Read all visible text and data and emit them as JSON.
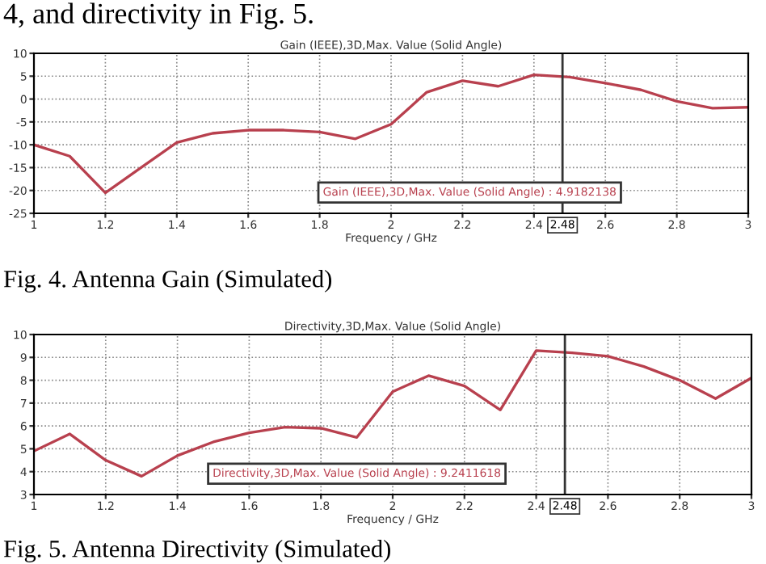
{
  "chart_data": [
    {
      "type": "line",
      "title": "Gain (IEEE),3D,Max. Value (Solid Angle)",
      "xlabel": "Frequency / GHz",
      "x": [
        1,
        1.1,
        1.2,
        1.3,
        1.4,
        1.5,
        1.6,
        1.7,
        1.8,
        1.9,
        2,
        2.1,
        2.2,
        2.3,
        2.4,
        2.5,
        2.6,
        2.7,
        2.8,
        2.9,
        3
      ],
      "series": [
        {
          "color": "#b8404e",
          "values": [
            -10,
            -12.5,
            -20.5,
            -15,
            -9.5,
            -7.5,
            -6.8,
            -6.8,
            -7.2,
            -8.7,
            -5.5,
            1.5,
            4,
            2.8,
            5.3,
            4.8,
            3.5,
            2,
            -0.5,
            -2,
            -1.8
          ]
        }
      ],
      "xlim": [
        1,
        3
      ],
      "xticks": [
        1,
        1.2,
        1.4,
        1.6,
        1.8,
        2,
        2.2,
        2.4,
        2.6,
        2.8,
        3
      ],
      "ylim": [
        -25,
        10
      ],
      "yticks": [
        -25,
        -20,
        -15,
        -10,
        -5,
        0,
        5,
        10
      ],
      "ref_lines": [
        {
          "axis": "x",
          "value": 2.48,
          "label": "2.48",
          "color": "#333333"
        }
      ],
      "grid": true,
      "legend": false,
      "marker": "none",
      "line_style": "solid",
      "annotations": [
        "Gain (IEEE),3D,Max. Value (Solid Angle) : 4.9182138",
        "Fig. 4. Antenna Gain (Simulated)",
        "4, and directivity in Fig. 5."
      ]
    },
    {
      "type": "line",
      "title": "Directivity,3D,Max. Value (Solid Angle)",
      "xlabel": "Frequency / GHz",
      "x": [
        1,
        1.1,
        1.2,
        1.3,
        1.4,
        1.5,
        1.6,
        1.7,
        1.8,
        1.9,
        2,
        2.1,
        2.2,
        2.3,
        2.4,
        2.5,
        2.6,
        2.7,
        2.8,
        2.9,
        3
      ],
      "series": [
        {
          "color": "#b8404e",
          "values": [
            4.9,
            5.65,
            4.5,
            3.8,
            4.7,
            5.3,
            5.7,
            5.95,
            5.9,
            5.5,
            7.5,
            8.2,
            7.75,
            6.7,
            9.3,
            9.2,
            9.05,
            8.6,
            8.0,
            7.2,
            8.1
          ]
        }
      ],
      "xlim": [
        1,
        3
      ],
      "xticks": [
        1,
        1.2,
        1.4,
        1.6,
        1.8,
        2,
        2.2,
        2.4,
        2.6,
        2.8,
        3
      ],
      "ylim": [
        3,
        10
      ],
      "yticks": [
        3,
        4,
        5,
        6,
        7,
        8,
        9,
        10
      ],
      "ref_lines": [
        {
          "axis": "x",
          "value": 2.48,
          "label": "2.48",
          "color": "#333333"
        }
      ],
      "grid": true,
      "legend": false,
      "marker": "none",
      "line_style": "solid",
      "annotations": [
        "Directivity,3D,Max. Value (Solid Angle) : 9.2411618",
        "Fig. 5. Antenna Directivity (Simulated)"
      ]
    }
  ]
}
